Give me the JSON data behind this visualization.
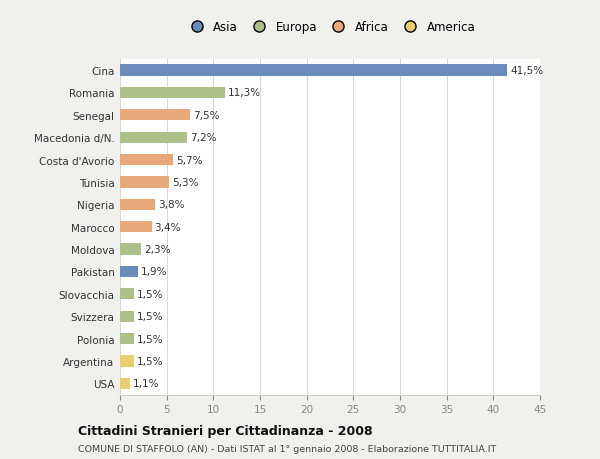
{
  "categories": [
    "Cina",
    "Romania",
    "Senegal",
    "Macedonia d/N.",
    "Costa d'Avorio",
    "Tunisia",
    "Nigeria",
    "Marocco",
    "Moldova",
    "Pakistan",
    "Slovacchia",
    "Svizzera",
    "Polonia",
    "Argentina",
    "USA"
  ],
  "values": [
    41.5,
    11.3,
    7.5,
    7.2,
    5.7,
    5.3,
    3.8,
    3.4,
    2.3,
    1.9,
    1.5,
    1.5,
    1.5,
    1.5,
    1.1
  ],
  "labels": [
    "41,5%",
    "11,3%",
    "7,5%",
    "7,2%",
    "5,7%",
    "5,3%",
    "3,8%",
    "3,4%",
    "2,3%",
    "1,9%",
    "1,5%",
    "1,5%",
    "1,5%",
    "1,5%",
    "1,1%"
  ],
  "continents": [
    "Asia",
    "Europa",
    "Africa",
    "Europa",
    "Africa",
    "Africa",
    "Africa",
    "Africa",
    "Europa",
    "Asia",
    "Europa",
    "Europa",
    "Europa",
    "America",
    "America"
  ],
  "colors": {
    "Asia": "#6b8cba",
    "Europa": "#adc08a",
    "Africa": "#e8a878",
    "America": "#e8d070"
  },
  "legend_order": [
    "Asia",
    "Europa",
    "Africa",
    "America"
  ],
  "title": "Cittadini Stranieri per Cittadinanza - 2008",
  "subtitle": "COMUNE DI STAFFOLO (AN) - Dati ISTAT al 1° gennaio 2008 - Elaborazione TUTTITALIA.IT",
  "xlim": [
    0,
    45
  ],
  "xticks": [
    0,
    5,
    10,
    15,
    20,
    25,
    30,
    35,
    40,
    45
  ],
  "background_color": "#f0f0ec",
  "plot_bg_color": "#ffffff",
  "grid_color": "#d8d8d8"
}
